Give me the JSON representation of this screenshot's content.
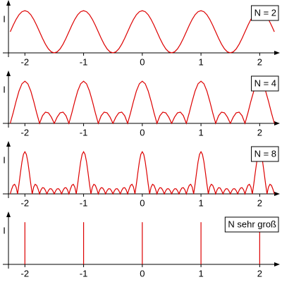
{
  "chart_data": [
    {
      "type": "line",
      "annotation": "N = 2",
      "ylabel": "I",
      "color": "#dd0000",
      "xlim": [
        -2.28,
        2.26
      ],
      "ylim": [
        0,
        1.12
      ],
      "xticks": [
        -2,
        -1,
        0,
        1,
        2
      ],
      "x": [
        -2.25,
        -2.2,
        -2.15,
        -2.1,
        -2.05,
        -2,
        -1.95,
        -1.9,
        -1.85,
        -1.8,
        -1.75,
        -1.7,
        -1.65,
        -1.6,
        -1.55,
        -1.5,
        -1.45,
        -1.4,
        -1.35,
        -1.3,
        -1.25,
        -1.2,
        -1.15,
        -1.1,
        -1.05,
        -1,
        -0.95,
        -0.9,
        -0.85,
        -0.8,
        -0.75,
        -0.7,
        -0.65,
        -0.6,
        -0.55,
        -0.5,
        -0.45,
        -0.4,
        -0.35,
        -0.3,
        -0.25,
        -0.2,
        -0.15,
        -0.1,
        -0.05,
        0,
        0.05,
        0.1,
        0.15,
        0.2,
        0.25,
        0.3,
        0.35,
        0.4,
        0.45,
        0.5,
        0.55,
        0.6,
        0.65,
        0.7,
        0.75,
        0.8,
        0.85,
        0.9,
        0.95,
        1,
        1.05,
        1.1,
        1.15,
        1.2,
        1.25,
        1.3,
        1.35,
        1.4,
        1.45,
        1.5,
        1.55,
        1.6,
        1.65,
        1.7,
        1.75,
        1.8,
        1.85,
        1.9,
        1.95,
        2,
        2.05,
        2.1,
        2.15,
        2.2,
        2.25
      ],
      "values": [
        0.5,
        0.655,
        0.794,
        0.905,
        0.976,
        1,
        0.976,
        0.905,
        0.794,
        0.655,
        0.5,
        0.345,
        0.206,
        0.095,
        0.024,
        0,
        0.024,
        0.095,
        0.206,
        0.345,
        0.5,
        0.655,
        0.794,
        0.905,
        0.976,
        1,
        0.976,
        0.905,
        0.794,
        0.655,
        0.5,
        0.345,
        0.206,
        0.095,
        0.024,
        0,
        0.024,
        0.095,
        0.206,
        0.345,
        0.5,
        0.655,
        0.794,
        0.905,
        0.976,
        1,
        0.976,
        0.905,
        0.794,
        0.655,
        0.5,
        0.345,
        0.206,
        0.095,
        0.024,
        0,
        0.024,
        0.095,
        0.206,
        0.345,
        0.5,
        0.655,
        0.794,
        0.905,
        0.976,
        1,
        0.976,
        0.905,
        0.794,
        0.655,
        0.5,
        0.345,
        0.206,
        0.095,
        0.024,
        0,
        0.024,
        0.095,
        0.206,
        0.345,
        0.5,
        0.655,
        0.794,
        0.905,
        0.976,
        1,
        0.976,
        0.905,
        0.794,
        0.655,
        0.5
      ]
    },
    {
      "type": "line",
      "annotation": "N = 4",
      "ylabel": "I",
      "color": "#dd0000",
      "xlim": [
        -2.28,
        2.26
      ],
      "ylim": [
        0,
        1.12
      ],
      "xticks": [
        -2,
        -1,
        0,
        1,
        2
      ],
      "x": [
        -2.25,
        -2.2,
        -2.15,
        -2.1,
        -2.05,
        -2,
        -1.95,
        -1.9,
        -1.85,
        -1.8,
        -1.75,
        -1.7,
        -1.65,
        -1.6,
        -1.55,
        -1.5,
        -1.45,
        -1.4,
        -1.35,
        -1.3,
        -1.25,
        -1.2,
        -1.15,
        -1.1,
        -1.05,
        -1,
        -0.95,
        -0.9,
        -0.85,
        -0.8,
        -0.75,
        -0.7,
        -0.65,
        -0.6,
        -0.55,
        -0.5,
        -0.45,
        -0.4,
        -0.35,
        -0.3,
        -0.25,
        -0.2,
        -0.15,
        -0.1,
        -0.05,
        0,
        0.05,
        0.1,
        0.15,
        0.2,
        0.25,
        0.3,
        0.35,
        0.4,
        0.45,
        0.5,
        0.55,
        0.6,
        0.65,
        0.7,
        0.75,
        0.8,
        0.85,
        0.9,
        0.95,
        1,
        1.05,
        1.1,
        1.15,
        1.2,
        1.25,
        1.3,
        1.35,
        1.4,
        1.45,
        1.5,
        1.55,
        1.6,
        1.65,
        1.7,
        1.75,
        1.8,
        1.85,
        1.9,
        1.95,
        2,
        2.05,
        2.1,
        2.15,
        2.2,
        2.25
      ],
      "values": [
        0,
        0.25,
        0.524,
        0.769,
        0.939,
        1,
        0.939,
        0.769,
        0.524,
        0.25,
        0,
        0.182,
        0.267,
        0.25,
        0.149,
        0,
        0.149,
        0.25,
        0.267,
        0.182,
        0,
        0.25,
        0.524,
        0.769,
        0.939,
        1,
        0.939,
        0.769,
        0.524,
        0.25,
        0,
        0.182,
        0.267,
        0.25,
        0.149,
        0,
        0.149,
        0.25,
        0.267,
        0.182,
        0,
        0.25,
        0.524,
        0.769,
        0.939,
        1,
        0.939,
        0.769,
        0.524,
        0.25,
        0,
        0.182,
        0.267,
        0.25,
        0.149,
        0,
        0.149,
        0.25,
        0.267,
        0.182,
        0,
        0.25,
        0.524,
        0.769,
        0.939,
        1,
        0.939,
        0.769,
        0.524,
        0.25,
        0,
        0.182,
        0.267,
        0.25,
        0.149,
        0,
        0.149,
        0.25,
        0.267,
        0.182,
        0,
        0.25,
        0.524,
        0.769,
        0.939,
        1,
        0.939,
        0.769,
        0.524,
        0.25,
        0
      ]
    },
    {
      "type": "line",
      "annotation": "N = 8",
      "ylabel": "I",
      "color": "#dd0000",
      "xlim": [
        -2.28,
        2.26
      ],
      "ylim": [
        0,
        1.12
      ],
      "xticks": [
        -2,
        -1,
        0,
        1,
        2
      ],
      "x": [
        -2.25,
        -2.225,
        -2.2,
        -2.175,
        -2.15,
        -2.125,
        -2.1,
        -2.075,
        -2.05,
        -2.025,
        -2,
        -1.975,
        -1.95,
        -1.925,
        -1.9,
        -1.875,
        -1.85,
        -1.825,
        -1.8,
        -1.775,
        -1.75,
        -1.725,
        -1.7,
        -1.675,
        -1.65,
        -1.625,
        -1.6,
        -1.575,
        -1.55,
        -1.525,
        -1.5,
        -1.475,
        -1.45,
        -1.425,
        -1.4,
        -1.375,
        -1.35,
        -1.325,
        -1.3,
        -1.275,
        -1.25,
        -1.225,
        -1.2,
        -1.175,
        -1.15,
        -1.125,
        -1.1,
        -1.075,
        -1.05,
        -1.025,
        -1,
        -0.975,
        -0.95,
        -0.925,
        -0.9,
        -0.875,
        -0.85,
        -0.825,
        -0.8,
        -0.775,
        -0.75,
        -0.725,
        -0.7,
        -0.675,
        -0.65,
        -0.625,
        -0.6,
        -0.575,
        -0.55,
        -0.525,
        -0.5,
        -0.475,
        -0.45,
        -0.425,
        -0.4,
        -0.375,
        -0.35,
        -0.325,
        -0.3,
        -0.275,
        -0.25,
        -0.225,
        -0.2,
        -0.175,
        -0.15,
        -0.125,
        -0.1,
        -0.075,
        -0.05,
        -0.025,
        0,
        0.025,
        0.05,
        0.075,
        0.1,
        0.125,
        0.15,
        0.175,
        0.2,
        0.225,
        0.25,
        0.275,
        0.3,
        0.325,
        0.35,
        0.375,
        0.4,
        0.425,
        0.45,
        0.475,
        0.5,
        0.525,
        0.55,
        0.575,
        0.6,
        0.625,
        0.65,
        0.675,
        0.7,
        0.725,
        0.75,
        0.775,
        0.8,
        0.825,
        0.85,
        0.875,
        0.9,
        0.925,
        0.95,
        0.975,
        1,
        1.025,
        1.05,
        1.075,
        1.1,
        1.125,
        1.15,
        1.175,
        1.2,
        1.225,
        1.25,
        1.275,
        1.3,
        1.325,
        1.35,
        1.375,
        1.4,
        1.425,
        1.45,
        1.475,
        1.5,
        1.525,
        1.55,
        1.575,
        1.6,
        1.625,
        1.65,
        1.675,
        1.7,
        1.725,
        1.75,
        1.775,
        1.8,
        1.825,
        1.85,
        1.875,
        1.9,
        1.925,
        1.95,
        1.975,
        2,
        2.025,
        2.05,
        2.075,
        2.1,
        2.125,
        2.15,
        2.175,
        2.2,
        2.225,
        2.25
      ],
      "values": [
        0,
        0.113,
        0.202,
        0.228,
        0.162,
        0,
        0.238,
        0.509,
        0.76,
        0.937,
        1,
        0.937,
        0.76,
        0.509,
        0.238,
        0,
        0.162,
        0.228,
        0.202,
        0.113,
        0,
        0.097,
        0.147,
        0.139,
        0.083,
        0,
        0.077,
        0.122,
        0.12,
        0.074,
        0,
        0.074,
        0.12,
        0.122,
        0.077,
        0,
        0.083,
        0.139,
        0.147,
        0.097,
        0,
        0.113,
        0.202,
        0.228,
        0.162,
        0,
        0.238,
        0.509,
        0.76,
        0.937,
        1,
        0.937,
        0.76,
        0.509,
        0.238,
        0,
        0.162,
        0.228,
        0.202,
        0.113,
        0,
        0.097,
        0.147,
        0.139,
        0.083,
        0,
        0.077,
        0.122,
        0.12,
        0.074,
        0,
        0.074,
        0.12,
        0.122,
        0.077,
        0,
        0.083,
        0.139,
        0.147,
        0.097,
        0,
        0.113,
        0.202,
        0.228,
        0.162,
        0,
        0.238,
        0.509,
        0.76,
        0.937,
        1,
        0.937,
        0.76,
        0.509,
        0.238,
        0,
        0.162,
        0.228,
        0.202,
        0.113,
        0,
        0.097,
        0.147,
        0.139,
        0.083,
        0,
        0.077,
        0.122,
        0.12,
        0.074,
        0,
        0.074,
        0.12,
        0.122,
        0.077,
        0,
        0.083,
        0.139,
        0.147,
        0.097,
        0,
        0.113,
        0.202,
        0.228,
        0.162,
        0,
        0.238,
        0.509,
        0.76,
        0.937,
        1,
        0.937,
        0.76,
        0.509,
        0.238,
        0,
        0.162,
        0.228,
        0.202,
        0.113,
        0,
        0.097,
        0.147,
        0.139,
        0.083,
        0,
        0.077,
        0.122,
        0.12,
        0.074,
        0,
        0.074,
        0.12,
        0.122,
        0.077,
        0,
        0.083,
        0.139,
        0.147,
        0.097,
        0,
        0.113,
        0.202,
        0.228,
        0.162,
        0,
        0.238,
        0.509,
        0.76,
        0.937,
        1,
        0.937,
        0.76,
        0.509,
        0.238,
        0,
        0.162,
        0.228,
        0.202,
        0.113,
        0
      ]
    },
    {
      "type": "stem",
      "annotation": "N sehr groß",
      "ylabel": "I",
      "color": "#dd0000",
      "xlim": [
        -2.28,
        2.26
      ],
      "ylim": [
        0,
        1.12
      ],
      "xticks": [
        -2,
        -1,
        0,
        1,
        2
      ],
      "x": [
        -2,
        -1,
        0,
        1,
        2
      ],
      "values": [
        1,
        1,
        1,
        1,
        1
      ]
    }
  ]
}
